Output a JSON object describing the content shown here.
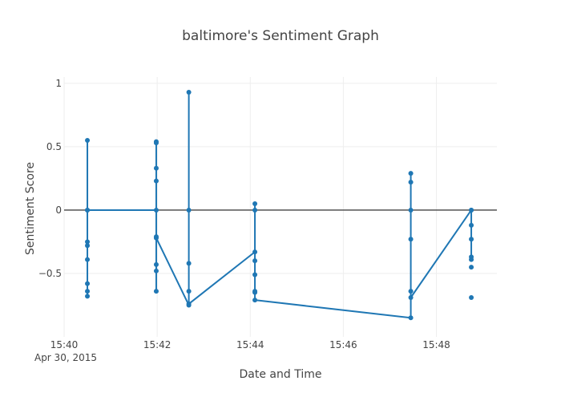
{
  "chart_data": {
    "type": "line",
    "title": "baltimore's Sentiment Graph",
    "xlabel": "Date and Time",
    "ylabel": "Sentiment Score",
    "x_date_sublabel": "Apr 30, 2015",
    "xlim": [
      "15:40",
      "15:49.3"
    ],
    "ylim": [
      -1.0,
      1.05
    ],
    "x_ticks": [
      "15:40",
      "15:42",
      "15:44",
      "15:46",
      "15:48"
    ],
    "y_ticks": [
      1,
      0.5,
      0,
      -0.5
    ],
    "y_tick_labels": [
      "1",
      "0.5",
      "0",
      "−0.5"
    ],
    "grid": true,
    "zero_line": true,
    "series_color": "#1f77b4",
    "zero_line_color": "#444444",
    "x_unit": "minutes after 15:00",
    "series": [
      {
        "x": [
          40.5,
          40.5,
          40.5,
          40.5,
          40.5,
          40.5,
          40.5,
          40.5,
          40.5,
          41.98,
          41.98,
          41.98,
          41.98,
          41.98,
          41.98,
          41.98,
          41.98,
          41.98,
          41.98,
          42.68,
          42.68,
          42.68,
          42.68,
          42.68,
          42.68,
          44.1,
          44.1,
          44.1,
          44.1,
          44.1,
          44.1,
          44.1,
          44.1,
          47.45,
          47.45,
          47.45,
          47.45,
          47.45,
          47.45,
          47.45,
          48.75,
          48.75,
          48.75,
          48.75,
          48.75,
          48.75
        ],
        "y": [
          -0.28,
          0.55,
          0,
          -0.25,
          -0.39,
          -0.58,
          -0.64,
          -0.68,
          0,
          0,
          0.54,
          0.53,
          0.33,
          0.23,
          -0.21,
          -0.43,
          -0.48,
          -0.64,
          -0.22,
          -0.75,
          0.93,
          0,
          -0.42,
          -0.64,
          -0.74,
          -0.33,
          0.05,
          0,
          -0.4,
          -0.51,
          -0.64,
          -0.65,
          -0.71,
          -0.85,
          0.29,
          0.22,
          0,
          -0.23,
          -0.64,
          -0.69,
          0,
          0,
          -0.12,
          -0.23,
          -0.37,
          -0.39
        ]
      }
    ],
    "extra_points": [
      {
        "x": 48.75,
        "y": -0.45
      },
      {
        "x": 48.75,
        "y": -0.69
      }
    ]
  }
}
